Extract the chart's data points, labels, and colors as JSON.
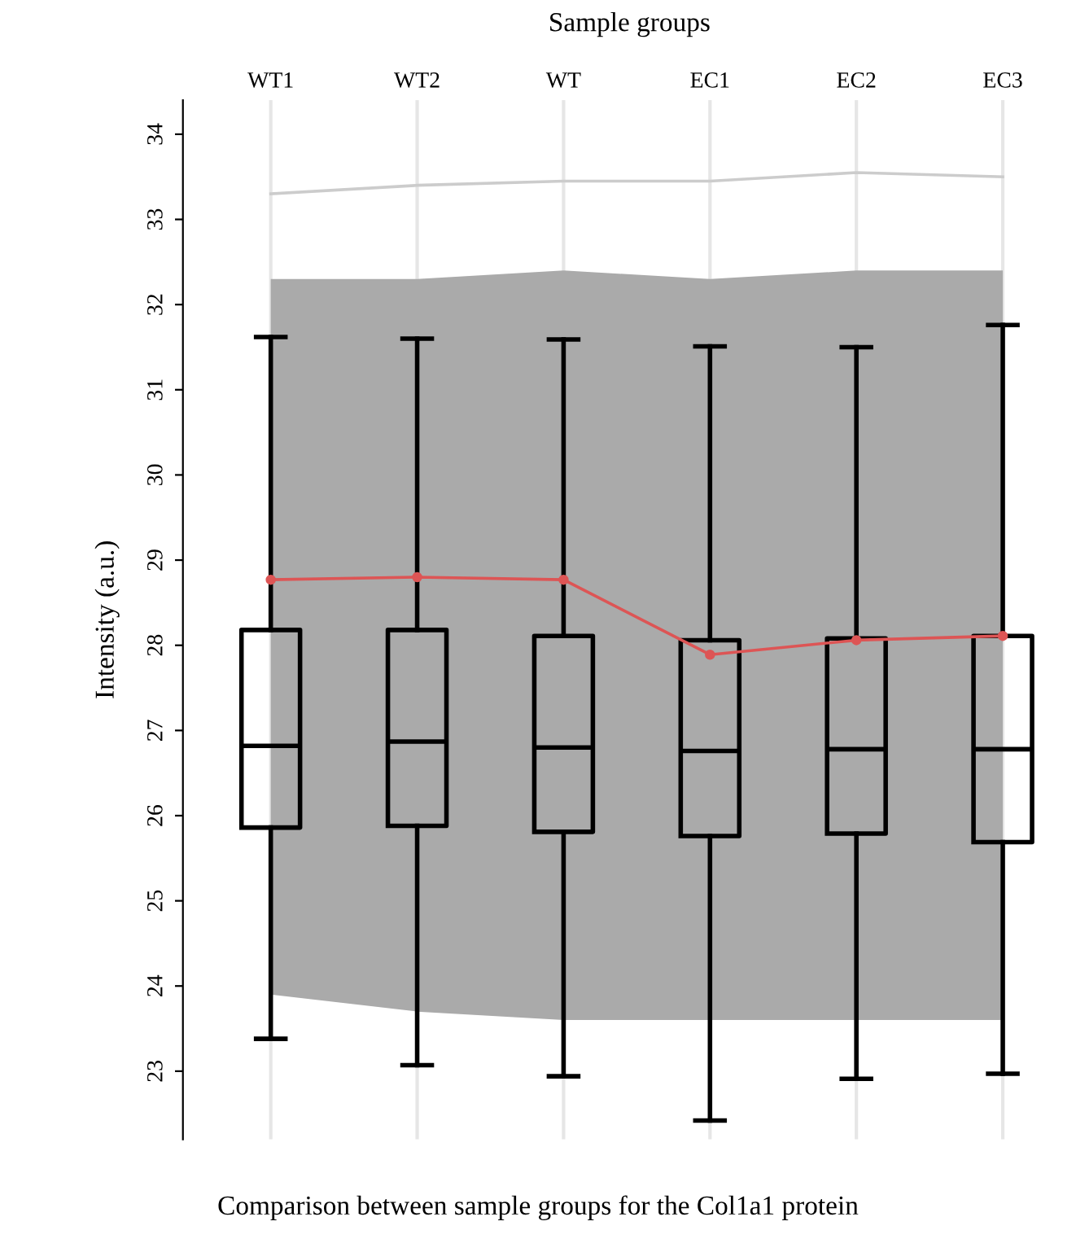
{
  "chart_data": {
    "type": "box",
    "xlabel": "Sample groups",
    "ylabel": "Intensity (a.u.)",
    "categories": [
      "WT1",
      "WT2",
      "WT",
      "EC1",
      "EC2",
      "EC3"
    ],
    "boxes": [
      {
        "low": 23.38,
        "q1": 25.86,
        "median": 26.82,
        "q3": 28.18,
        "high": 31.62
      },
      {
        "low": 23.07,
        "q1": 25.88,
        "median": 26.87,
        "q3": 28.18,
        "high": 31.6
      },
      {
        "low": 22.94,
        "q1": 25.81,
        "median": 26.8,
        "q3": 28.11,
        "high": 31.59
      },
      {
        "low": 22.42,
        "q1": 25.76,
        "median": 26.76,
        "q3": 28.06,
        "high": 31.51
      },
      {
        "low": 22.91,
        "q1": 25.79,
        "median": 26.78,
        "q3": 28.08,
        "high": 31.5
      },
      {
        "low": 22.97,
        "q1": 25.69,
        "median": 26.78,
        "q3": 28.11,
        "high": 31.76
      }
    ],
    "series": [
      {
        "type": "area",
        "color": "#aaaaaa",
        "values": [
          null,
          null,
          null,
          null,
          null,
          null
        ],
        "lower": [
          23.9,
          23.7,
          23.6,
          23.6,
          23.6,
          23.6
        ],
        "upper": [
          32.3,
          32.3,
          32.4,
          32.3,
          32.4,
          32.4
        ]
      },
      {
        "type": "line",
        "color": "#cccccc",
        "values": [
          33.3,
          33.4,
          33.45,
          33.45,
          33.55,
          33.5
        ]
      },
      {
        "type": "line",
        "color": "#dd5555",
        "values": [
          28.77,
          28.8,
          28.77,
          27.89,
          28.06,
          28.11
        ],
        "marker": "circle"
      }
    ],
    "ylim": [
      22.2,
      34.4
    ],
    "yticks": [
      23,
      24,
      25,
      26,
      27,
      28,
      29,
      30,
      31,
      32,
      33,
      34
    ],
    "grid": "x",
    "annotations": [
      "Comparison between sample groups for the Col1a1 protein"
    ]
  }
}
